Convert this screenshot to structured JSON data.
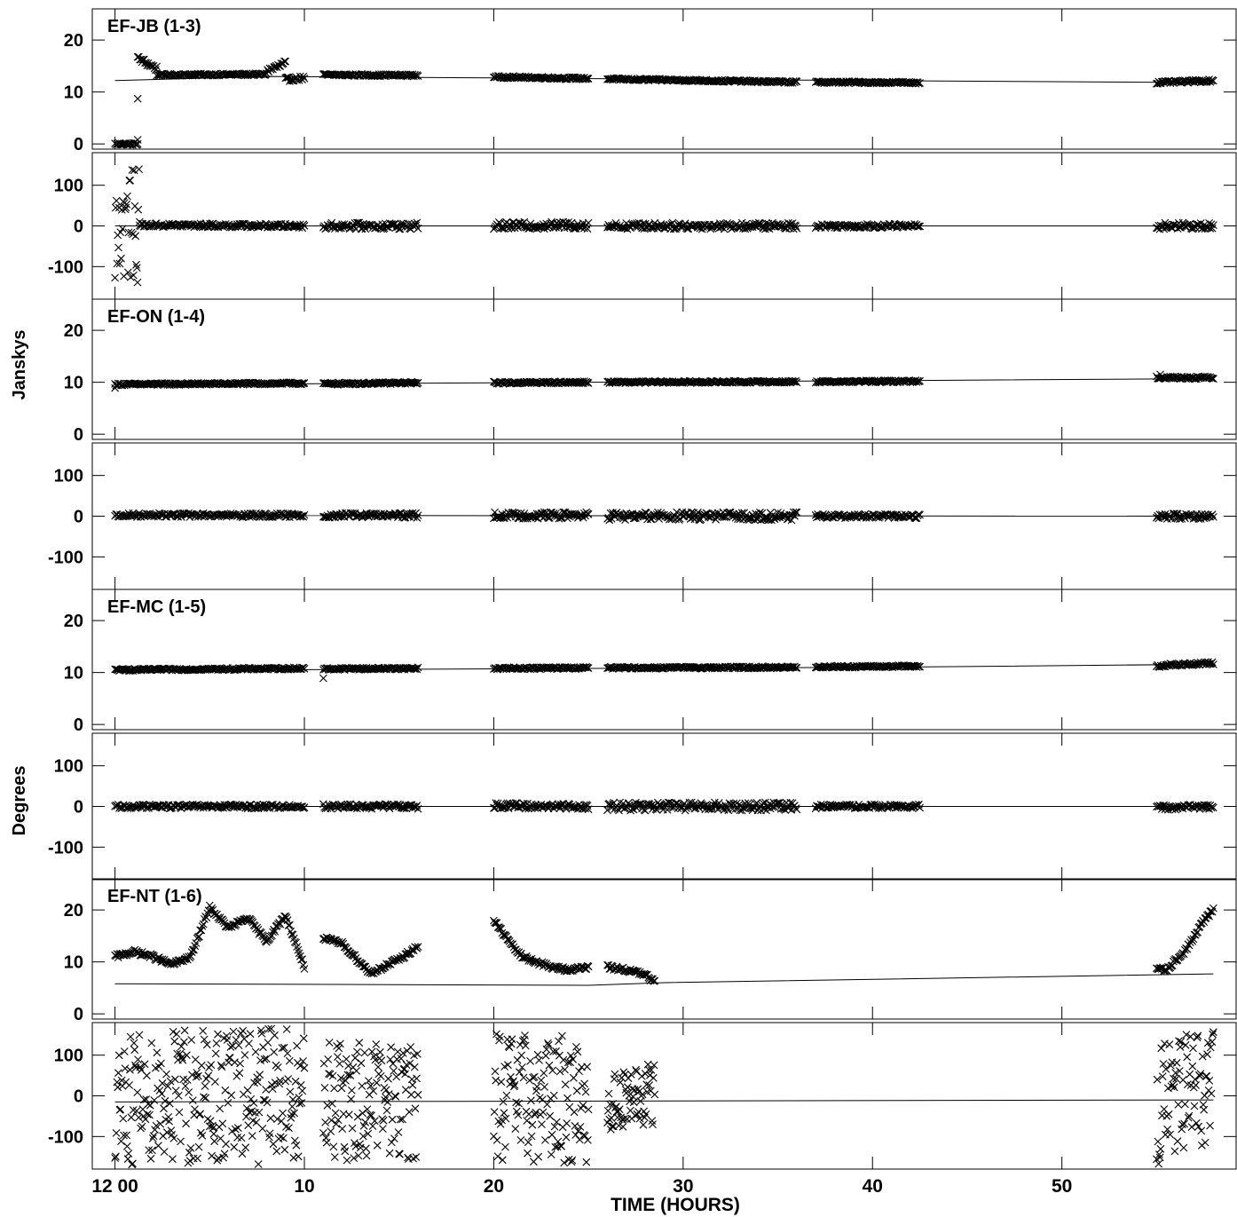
{
  "chart_data": {
    "type": "scatter",
    "xlabel": "TIME (HOURS)",
    "x_ticks": [
      {
        "value": 0,
        "label": "12 00"
      },
      {
        "value": 10,
        "label": "10"
      },
      {
        "value": 20,
        "label": "20"
      },
      {
        "value": 30,
        "label": "30"
      },
      {
        "value": 40,
        "label": "40"
      },
      {
        "value": 50,
        "label": "50"
      }
    ],
    "xlim": [
      -1.2,
      59.2
    ],
    "axis_labels": {
      "amplitude": "Janskys",
      "phase": "Degrees"
    },
    "amp_ylim": [
      -1,
      26
    ],
    "phase_ylim": [
      -180,
      180
    ],
    "amp_ticks": [
      0,
      10,
      20
    ],
    "phase_ticks": [
      -100,
      0,
      100
    ],
    "marker": "x",
    "colors": {
      "marks": "#000000",
      "background": "#ffffff"
    },
    "panels": [
      {
        "name": "EF-JB (1-3)",
        "amp_segments": [
          {
            "x": [
              0.0,
              1.2
            ],
            "y": [
              0,
              0
            ],
            "spread": 0.2
          },
          {
            "x": [
              1.2,
              2.2
            ],
            "y": [
              16.5,
              14.5
            ],
            "spread": 0.5
          },
          {
            "x": [
              2.2,
              8.0
            ],
            "y": [
              13.3,
              13.4
            ],
            "spread": 0.2
          },
          {
            "x": [
              8.0,
              9.0
            ],
            "y": [
              14.0,
              15.5
            ],
            "spread": 0.6
          },
          {
            "x": [
              9.0,
              10.0
            ],
            "y": [
              12.4,
              12.7
            ],
            "spread": 0.4
          },
          {
            "x": [
              11.0,
              16.0
            ],
            "y": [
              13.3,
              13.2
            ],
            "spread": 0.2
          },
          {
            "x": [
              20.0,
              25.0
            ],
            "y": [
              12.9,
              12.6
            ],
            "spread": 0.2
          },
          {
            "x": [
              26.0,
              36.0
            ],
            "y": [
              12.5,
              11.9
            ],
            "spread": 0.2
          },
          {
            "x": [
              37.0,
              42.5
            ],
            "y": [
              11.9,
              11.8
            ],
            "spread": 0.2
          },
          {
            "x": [
              55.0,
              58.0
            ],
            "y": [
              11.8,
              12.2
            ],
            "spread": 0.25
          }
        ],
        "amp_outliers": [
          [
            1.2,
            8.7
          ],
          [
            1.2,
            0.8
          ]
        ],
        "amp_model": [
          [
            0,
            12.2
          ],
          [
            8,
            13.0
          ],
          [
            20,
            12.7
          ],
          [
            40,
            12.2
          ],
          [
            58,
            11.8
          ]
        ],
        "phase_segments": [
          {
            "x": [
              0.0,
              1.3
            ],
            "y": [
              0,
              0
            ],
            "spread": 140
          },
          {
            "x": [
              1.3,
              10.0
            ],
            "y": [
              2,
              0
            ],
            "spread": 5
          },
          {
            "x": [
              11.0,
              16.0
            ],
            "y": [
              0,
              0
            ],
            "spread": 8
          },
          {
            "x": [
              20.0,
              25.0
            ],
            "y": [
              0,
              2
            ],
            "spread": 9
          },
          {
            "x": [
              26.0,
              36.0
            ],
            "y": [
              0,
              0
            ],
            "spread": 8
          },
          {
            "x": [
              37.0,
              42.5
            ],
            "y": [
              0,
              0
            ],
            "spread": 5
          },
          {
            "x": [
              55.0,
              58.0
            ],
            "y": [
              0,
              0
            ],
            "spread": 8
          }
        ],
        "phase_model": [
          [
            0,
            0
          ],
          [
            58,
            0
          ]
        ]
      },
      {
        "name": "EF-ON (1-4)",
        "amp_segments": [
          {
            "x": [
              0.0,
              10.0
            ],
            "y": [
              9.6,
              9.8
            ],
            "spread": 0.2
          },
          {
            "x": [
              11.0,
              16.0
            ],
            "y": [
              9.7,
              9.9
            ],
            "spread": 0.2
          },
          {
            "x": [
              20.0,
              25.0
            ],
            "y": [
              9.9,
              10.0
            ],
            "spread": 0.2
          },
          {
            "x": [
              26.0,
              36.0
            ],
            "y": [
              10.0,
              10.1
            ],
            "spread": 0.2
          },
          {
            "x": [
              37.0,
              42.5
            ],
            "y": [
              10.1,
              10.2
            ],
            "spread": 0.2
          },
          {
            "x": [
              55.0,
              58.0
            ],
            "y": [
              10.9,
              10.9
            ],
            "spread": 0.25
          }
        ],
        "amp_outliers": [
          [
            0.0,
            8.9
          ],
          [
            55.2,
            11.5
          ]
        ],
        "amp_model": [
          [
            0,
            9.5
          ],
          [
            20,
            9.9
          ],
          [
            40,
            10.3
          ],
          [
            58,
            10.7
          ]
        ],
        "phase_segments": [
          {
            "x": [
              0.0,
              10.0
            ],
            "y": [
              3,
              2
            ],
            "spread": 5
          },
          {
            "x": [
              11.0,
              16.0
            ],
            "y": [
              2,
              2
            ],
            "spread": 6
          },
          {
            "x": [
              20.0,
              25.0
            ],
            "y": [
              2,
              2
            ],
            "spread": 8
          },
          {
            "x": [
              26.0,
              36.0
            ],
            "y": [
              0,
              0
            ],
            "spread": 10
          },
          {
            "x": [
              37.0,
              42.5
            ],
            "y": [
              0,
              0
            ],
            "spread": 5
          },
          {
            "x": [
              55.0,
              58.0
            ],
            "y": [
              0,
              0
            ],
            "spread": 7
          }
        ],
        "phase_model": [
          [
            0,
            2
          ],
          [
            58,
            0
          ]
        ]
      },
      {
        "name": "EF-MC (1-5)",
        "amp_segments": [
          {
            "x": [
              0.0,
              10.0
            ],
            "y": [
              10.5,
              10.8
            ],
            "spread": 0.2
          },
          {
            "x": [
              11.0,
              16.0
            ],
            "y": [
              10.7,
              10.8
            ],
            "spread": 0.2
          },
          {
            "x": [
              20.0,
              25.0
            ],
            "y": [
              10.8,
              10.9
            ],
            "spread": 0.2
          },
          {
            "x": [
              26.0,
              36.0
            ],
            "y": [
              10.9,
              11.0
            ],
            "spread": 0.2
          },
          {
            "x": [
              37.0,
              42.5
            ],
            "y": [
              11.1,
              11.2
            ],
            "spread": 0.2
          },
          {
            "x": [
              55.0,
              58.0
            ],
            "y": [
              11.3,
              11.8
            ],
            "spread": 0.3
          }
        ],
        "amp_outliers": [
          [
            11.0,
            8.9
          ]
        ],
        "amp_model": [
          [
            0,
            10.4
          ],
          [
            20,
            10.7
          ],
          [
            40,
            11.0
          ],
          [
            58,
            11.6
          ]
        ],
        "phase_segments": [
          {
            "x": [
              0.0,
              10.0
            ],
            "y": [
              0,
              0
            ],
            "spread": 5
          },
          {
            "x": [
              11.0,
              16.0
            ],
            "y": [
              0,
              0
            ],
            "spread": 6
          },
          {
            "x": [
              20.0,
              25.0
            ],
            "y": [
              2,
              0
            ],
            "spread": 7
          },
          {
            "x": [
              26.0,
              36.0
            ],
            "y": [
              0,
              0
            ],
            "spread": 10
          },
          {
            "x": [
              37.0,
              42.5
            ],
            "y": [
              0,
              0
            ],
            "spread": 5
          },
          {
            "x": [
              55.0,
              58.0
            ],
            "y": [
              -3,
              0
            ],
            "spread": 6
          }
        ],
        "phase_model": [
          [
            0,
            0
          ],
          [
            58,
            0
          ]
        ]
      },
      {
        "name": "EF-NT (1-6)",
        "amp_curves": [
          {
            "x": [
              0,
              1,
              2,
              3,
              4,
              5,
              6,
              7,
              8,
              9,
              10
            ],
            "y": [
              11.0,
              12.0,
              11.0,
              9.5,
              11.0,
              20.5,
              16.5,
              18.5,
              14.0,
              19.0,
              9.0
            ]
          },
          {
            "x": [
              11,
              12,
              13.5,
              15,
              16
            ],
            "y": [
              14.5,
              13.5,
              7.8,
              10.5,
              13.0
            ]
          },
          {
            "x": [
              20,
              21,
              21.5,
              23,
              24,
              25
            ],
            "y": [
              18.0,
              13.0,
              11.0,
              9.0,
              8.5,
              9.0
            ]
          },
          {
            "x": [
              26,
              27,
              28,
              28.5
            ],
            "y": [
              9.0,
              8.5,
              7.5,
              6.0
            ]
          },
          {
            "x": [
              55,
              55.5,
              56.5,
              57.5,
              58
            ],
            "y": [
              9.0,
              8.5,
              12.0,
              18.0,
              20.0
            ]
          }
        ],
        "amp_model": [
          [
            0,
            5.8
          ],
          [
            25,
            5.5
          ],
          [
            29,
            6.0
          ],
          [
            58,
            7.7
          ]
        ],
        "phase_segments": [
          {
            "x": [
              0.0,
              10.0
            ],
            "y": [
              0,
              0
            ],
            "spread": 170
          },
          {
            "x": [
              11.0,
              16.0
            ],
            "y": [
              -10,
              -10
            ],
            "spread": 150
          },
          {
            "x": [
              20.0,
              25.0
            ],
            "y": [
              0,
              -10
            ],
            "spread": 160
          },
          {
            "x": [
              26.0,
              28.5
            ],
            "y": [
              -20,
              0
            ],
            "spread": 80
          },
          {
            "x": [
              55.0,
              58.0
            ],
            "y": [
              -20,
              20
            ],
            "spread": 150
          }
        ],
        "phase_model": [
          [
            0,
            -15
          ],
          [
            58,
            -10
          ]
        ]
      }
    ]
  }
}
